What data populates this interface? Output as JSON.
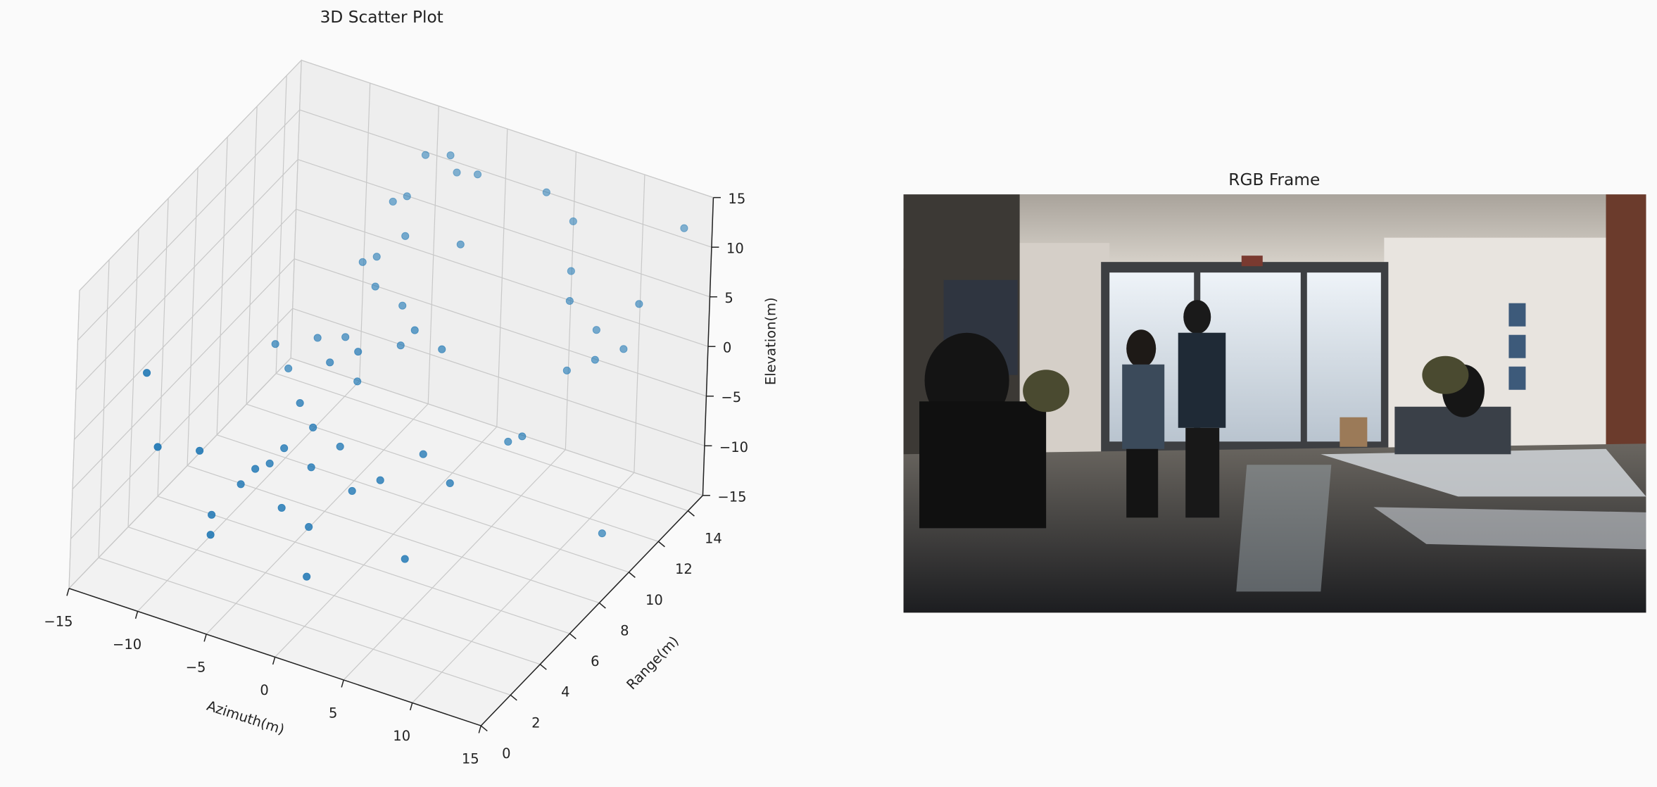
{
  "chart_data": [
    {
      "type": "scatter3d",
      "title": "3D Scatter Plot",
      "xlabel": "Azimuth(m)",
      "ylabel": "Range(m)",
      "zlabel": "Elevation(m)",
      "color": "#1f77b4",
      "x": [
        -4.8,
        -3,
        -2.5,
        -1,
        -6,
        -5,
        -4,
        -6,
        -5,
        -7,
        -3,
        -6,
        -8,
        -9,
        -10,
        -4,
        -2,
        0,
        4,
        6,
        8,
        10,
        12,
        9,
        11,
        13,
        14,
        7,
        -6,
        -5,
        -4,
        -3,
        -7,
        -6,
        -5,
        -2,
        -4,
        -8,
        -2,
        -7,
        0,
        2,
        4,
        6,
        5,
        -1,
        -3,
        -5,
        0,
        2,
        8,
        7,
        14,
        -12,
        -10,
        -8
      ],
      "y": [
        14,
        14,
        14,
        14,
        13,
        13,
        12,
        12,
        11,
        12,
        11,
        10,
        10,
        9,
        9,
        9,
        10,
        12,
        14,
        14,
        12,
        12,
        12,
        11,
        11,
        12,
        14,
        13,
        5,
        5,
        6,
        5,
        4,
        4,
        6,
        6,
        4,
        3,
        4,
        2,
        5,
        5,
        6,
        6,
        4,
        3,
        8,
        8,
        9,
        9,
        9,
        9,
        9,
        2,
        1,
        2
      ],
      "z": [
        11.7,
        12.5,
        11,
        11.5,
        8,
        9,
        7,
        4,
        3,
        3,
        2,
        -1,
        -2,
        -4,
        -2,
        -3,
        0,
        8,
        12,
        10,
        6,
        4,
        3,
        1,
        3,
        8,
        13,
        7,
        -6,
        -4,
        -3,
        -5,
        -7,
        -5,
        -1,
        -4,
        -8,
        -9,
        -9,
        -9,
        -6,
        -4,
        -2,
        -4,
        -9,
        -12,
        2,
        0,
        4,
        3,
        -3,
        -4,
        -10,
        5,
        0,
        -1
      ],
      "xlim": [
        -15,
        15
      ],
      "ylim": [
        0,
        15
      ],
      "zlim": [
        -15,
        15
      ],
      "xticks": [
        {
          "value": -15,
          "label": "−15"
        },
        {
          "value": -10,
          "label": "−10"
        },
        {
          "value": -5,
          "label": "−5"
        },
        0,
        5,
        10,
        15
      ],
      "yticks": [
        0,
        2,
        4,
        6,
        8,
        10,
        12,
        14
      ],
      "zticks": [
        {
          "value": -15,
          "label": "−15"
        },
        {
          "value": -10,
          "label": "−10"
        },
        {
          "value": -5,
          "label": "−5"
        },
        0,
        5,
        10,
        15
      ],
      "grid": true
    },
    {
      "type": "image",
      "title": "RGB Frame"
    }
  ]
}
